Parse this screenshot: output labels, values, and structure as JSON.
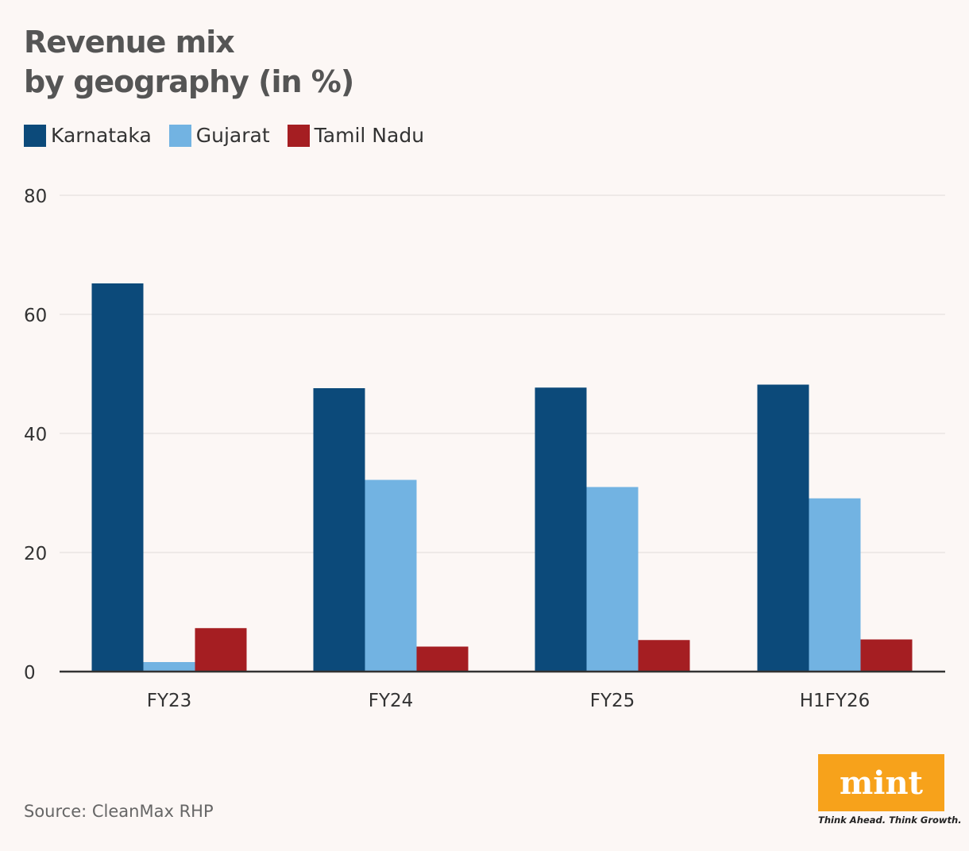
{
  "title_line1": "Revenue mix",
  "title_line2": "by geography (in %)",
  "source": "Source: CleanMax RHP",
  "logo": {
    "wordmark": "mint",
    "tagline": "Think Ahead. Think Growth.",
    "color": "#f7a21b"
  },
  "chart_data": {
    "type": "bar",
    "title": "Revenue mix by geography (in %)",
    "categories": [
      "FY23",
      "FY24",
      "FY25",
      "H1FY26"
    ],
    "series": [
      {
        "name": "Karnataka",
        "color": "#0c4a7a",
        "values": [
          65.2,
          47.6,
          47.7,
          48.2
        ]
      },
      {
        "name": "Gujarat",
        "color": "#72b3e2",
        "values": [
          1.6,
          32.2,
          31.0,
          29.1
        ]
      },
      {
        "name": "Tamil Nadu",
        "color": "#a51e22",
        "values": [
          7.3,
          4.2,
          5.3,
          5.4
        ]
      }
    ],
    "ylim": [
      0,
      80
    ],
    "yticks": [
      0,
      20,
      40,
      60,
      80
    ],
    "grid": true,
    "legend": "top-left"
  }
}
